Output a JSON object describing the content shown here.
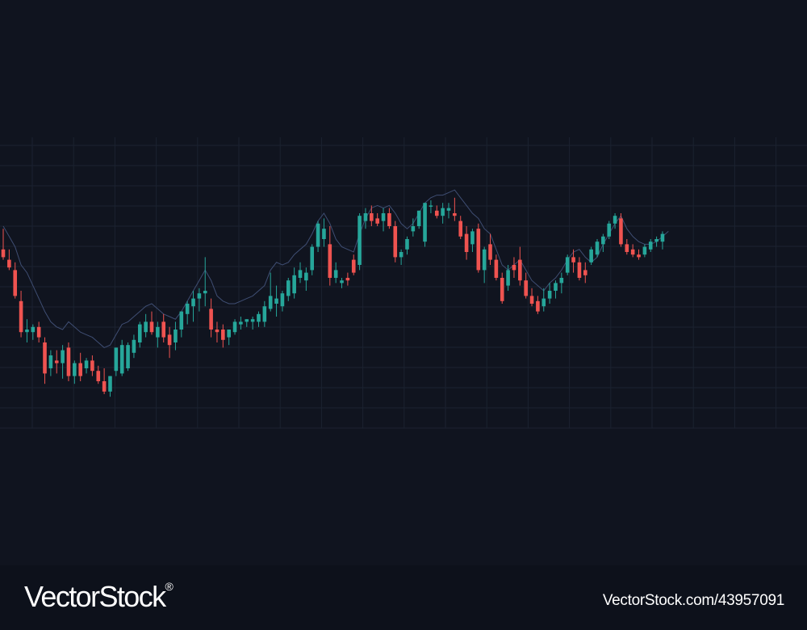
{
  "chart_data": {
    "type": "candlestick",
    "title": "",
    "xlabel": "",
    "ylabel": "",
    "grid": true,
    "ylim": [
      0,
      100
    ],
    "colors": {
      "up": "#26a69a",
      "down": "#ef5350",
      "background": "#10141f",
      "grid": "#1b2230",
      "overlay": "#3f4e73"
    },
    "candles": [
      {
        "o": 66,
        "h": 74,
        "l": 62,
        "c": 63
      },
      {
        "o": 62,
        "h": 66,
        "l": 58,
        "c": 59
      },
      {
        "o": 58,
        "h": 61,
        "l": 47,
        "c": 48
      },
      {
        "o": 46,
        "h": 50,
        "l": 32,
        "c": 34
      },
      {
        "o": 34,
        "h": 39,
        "l": 30,
        "c": 35
      },
      {
        "o": 34,
        "h": 37,
        "l": 31,
        "c": 36
      },
      {
        "o": 36,
        "h": 38,
        "l": 30,
        "c": 32
      },
      {
        "o": 30,
        "h": 32,
        "l": 14,
        "c": 18
      },
      {
        "o": 20,
        "h": 27,
        "l": 17,
        "c": 25
      },
      {
        "o": 23,
        "h": 27,
        "l": 18,
        "c": 22
      },
      {
        "o": 22,
        "h": 29,
        "l": 16,
        "c": 27
      },
      {
        "o": 28,
        "h": 30,
        "l": 15,
        "c": 17
      },
      {
        "o": 17,
        "h": 23,
        "l": 14,
        "c": 22
      },
      {
        "o": 22,
        "h": 26,
        "l": 15,
        "c": 17
      },
      {
        "o": 20,
        "h": 24,
        "l": 18,
        "c": 23
      },
      {
        "o": 23,
        "h": 25,
        "l": 17,
        "c": 19
      },
      {
        "o": 19,
        "h": 21,
        "l": 14,
        "c": 15
      },
      {
        "o": 15,
        "h": 20,
        "l": 10,
        "c": 11
      },
      {
        "o": 11,
        "h": 17,
        "l": 9,
        "c": 17
      },
      {
        "o": 19,
        "h": 28,
        "l": 17,
        "c": 28
      },
      {
        "o": 18,
        "h": 31,
        "l": 17,
        "c": 29
      },
      {
        "o": 20,
        "h": 30,
        "l": 19,
        "c": 29
      },
      {
        "o": 26,
        "h": 33,
        "l": 24,
        "c": 31
      },
      {
        "o": 30,
        "h": 38,
        "l": 28,
        "c": 37
      },
      {
        "o": 34,
        "h": 41,
        "l": 32,
        "c": 38
      },
      {
        "o": 38,
        "h": 42,
        "l": 33,
        "c": 34
      },
      {
        "o": 32,
        "h": 38,
        "l": 28,
        "c": 36
      },
      {
        "o": 38,
        "h": 41,
        "l": 30,
        "c": 32
      },
      {
        "o": 33,
        "h": 36,
        "l": 24,
        "c": 29
      },
      {
        "o": 30,
        "h": 38,
        "l": 27,
        "c": 35
      },
      {
        "o": 35,
        "h": 42,
        "l": 32,
        "c": 42
      },
      {
        "o": 41,
        "h": 46,
        "l": 37,
        "c": 45
      },
      {
        "o": 44,
        "h": 50,
        "l": 38,
        "c": 47
      },
      {
        "o": 47,
        "h": 51,
        "l": 42,
        "c": 49
      },
      {
        "o": 49,
        "h": 63,
        "l": 44,
        "c": 50
      },
      {
        "o": 43,
        "h": 47,
        "l": 32,
        "c": 35
      },
      {
        "o": 35,
        "h": 38,
        "l": 30,
        "c": 34
      },
      {
        "o": 35,
        "h": 37,
        "l": 28,
        "c": 31
      },
      {
        "o": 32,
        "h": 34,
        "l": 29,
        "c": 35
      },
      {
        "o": 34,
        "h": 39,
        "l": 33,
        "c": 38
      },
      {
        "o": 37,
        "h": 40,
        "l": 35,
        "c": 38
      },
      {
        "o": 38,
        "h": 39,
        "l": 36,
        "c": 39
      },
      {
        "o": 38,
        "h": 40,
        "l": 35,
        "c": 39
      },
      {
        "o": 38,
        "h": 42,
        "l": 36,
        "c": 41
      },
      {
        "o": 38,
        "h": 46,
        "l": 36,
        "c": 44
      },
      {
        "o": 43,
        "h": 57,
        "l": 42,
        "c": 48
      },
      {
        "o": 45,
        "h": 52,
        "l": 40,
        "c": 47
      },
      {
        "o": 44,
        "h": 50,
        "l": 42,
        "c": 49
      },
      {
        "o": 48,
        "h": 55,
        "l": 46,
        "c": 54
      },
      {
        "o": 49,
        "h": 59,
        "l": 47,
        "c": 56
      },
      {
        "o": 55,
        "h": 61,
        "l": 53,
        "c": 58
      },
      {
        "o": 54,
        "h": 59,
        "l": 50,
        "c": 57
      },
      {
        "o": 58,
        "h": 68,
        "l": 56,
        "c": 67
      },
      {
        "o": 67,
        "h": 77,
        "l": 65,
        "c": 76
      },
      {
        "o": 70,
        "h": 78,
        "l": 67,
        "c": 74
      },
      {
        "o": 68,
        "h": 75,
        "l": 52,
        "c": 55
      },
      {
        "o": 55,
        "h": 61,
        "l": 53,
        "c": 58
      },
      {
        "o": 53,
        "h": 55,
        "l": 51,
        "c": 54
      },
      {
        "o": 55,
        "h": 57,
        "l": 52,
        "c": 54
      },
      {
        "o": 62,
        "h": 64,
        "l": 56,
        "c": 57
      },
      {
        "o": 60,
        "h": 80,
        "l": 58,
        "c": 79
      },
      {
        "o": 77,
        "h": 82,
        "l": 74,
        "c": 80
      },
      {
        "o": 80,
        "h": 83,
        "l": 75,
        "c": 77
      },
      {
        "o": 78,
        "h": 80,
        "l": 75,
        "c": 76
      },
      {
        "o": 77,
        "h": 82,
        "l": 73,
        "c": 80
      },
      {
        "o": 80,
        "h": 82,
        "l": 74,
        "c": 75
      },
      {
        "o": 75,
        "h": 77,
        "l": 61,
        "c": 63
      },
      {
        "o": 63,
        "h": 66,
        "l": 60,
        "c": 65
      },
      {
        "o": 66,
        "h": 71,
        "l": 64,
        "c": 70
      },
      {
        "o": 73,
        "h": 78,
        "l": 71,
        "c": 75
      },
      {
        "o": 75,
        "h": 81,
        "l": 74,
        "c": 81
      },
      {
        "o": 69,
        "h": 84,
        "l": 67,
        "c": 84
      },
      {
        "o": 83,
        "h": 85,
        "l": 80,
        "c": 83
      },
      {
        "o": 81,
        "h": 83,
        "l": 78,
        "c": 79
      },
      {
        "o": 79,
        "h": 84,
        "l": 76,
        "c": 82
      },
      {
        "o": 81,
        "h": 84,
        "l": 78,
        "c": 82
      },
      {
        "o": 80,
        "h": 86,
        "l": 77,
        "c": 79
      },
      {
        "o": 77,
        "h": 79,
        "l": 70,
        "c": 71
      },
      {
        "o": 72,
        "h": 75,
        "l": 62,
        "c": 65
      },
      {
        "o": 68,
        "h": 74,
        "l": 65,
        "c": 73
      },
      {
        "o": 74,
        "h": 76,
        "l": 57,
        "c": 58
      },
      {
        "o": 58,
        "h": 67,
        "l": 53,
        "c": 66
      },
      {
        "o": 68,
        "h": 72,
        "l": 60,
        "c": 62
      },
      {
        "o": 62,
        "h": 64,
        "l": 54,
        "c": 55
      },
      {
        "o": 55,
        "h": 57,
        "l": 45,
        "c": 46
      },
      {
        "o": 52,
        "h": 60,
        "l": 50,
        "c": 58
      },
      {
        "o": 60,
        "h": 63,
        "l": 55,
        "c": 58
      },
      {
        "o": 62,
        "h": 67,
        "l": 52,
        "c": 54
      },
      {
        "o": 54,
        "h": 57,
        "l": 47,
        "c": 48
      },
      {
        "o": 48,
        "h": 51,
        "l": 44,
        "c": 45
      },
      {
        "o": 46,
        "h": 48,
        "l": 41,
        "c": 42
      },
      {
        "o": 44,
        "h": 51,
        "l": 42,
        "c": 47
      },
      {
        "o": 47,
        "h": 53,
        "l": 45,
        "c": 50
      },
      {
        "o": 50,
        "h": 54,
        "l": 47,
        "c": 53
      },
      {
        "o": 53,
        "h": 57,
        "l": 49,
        "c": 55
      },
      {
        "o": 57,
        "h": 64,
        "l": 56,
        "c": 63
      },
      {
        "o": 63,
        "h": 66,
        "l": 57,
        "c": 61
      },
      {
        "o": 61,
        "h": 63,
        "l": 54,
        "c": 55
      },
      {
        "o": 58,
        "h": 61,
        "l": 53,
        "c": 56
      },
      {
        "o": 61,
        "h": 67,
        "l": 60,
        "c": 66
      },
      {
        "o": 64,
        "h": 70,
        "l": 63,
        "c": 69
      },
      {
        "o": 68,
        "h": 72,
        "l": 65,
        "c": 71
      },
      {
        "o": 71,
        "h": 77,
        "l": 70,
        "c": 76
      },
      {
        "o": 76,
        "h": 80,
        "l": 74,
        "c": 79
      },
      {
        "o": 78,
        "h": 80,
        "l": 67,
        "c": 68
      },
      {
        "o": 68,
        "h": 70,
        "l": 64,
        "c": 65
      },
      {
        "o": 66,
        "h": 68,
        "l": 63,
        "c": 64
      },
      {
        "o": 64,
        "h": 66,
        "l": 62,
        "c": 63
      },
      {
        "o": 64,
        "h": 68,
        "l": 63,
        "c": 67
      },
      {
        "o": 66,
        "h": 70,
        "l": 65,
        "c": 69
      },
      {
        "o": 69,
        "h": 71,
        "l": 67,
        "c": 70
      },
      {
        "o": 69,
        "h": 73,
        "l": 66,
        "c": 72
      }
    ],
    "overlay": [
      75,
      71,
      67,
      60,
      57,
      52,
      47,
      42,
      38,
      36,
      35,
      38,
      36,
      34,
      33,
      32,
      30,
      28,
      29,
      33,
      37,
      38,
      40,
      42,
      44,
      45,
      43,
      41,
      40,
      39,
      42,
      46,
      50,
      54,
      58,
      54,
      48,
      46,
      45,
      45,
      46,
      47,
      48,
      50,
      52,
      58,
      61,
      60,
      61,
      64,
      66,
      68,
      72,
      77,
      80,
      76,
      70,
      67,
      66,
      65,
      72,
      78,
      82,
      83,
      82,
      83,
      80,
      76,
      74,
      76,
      80,
      84,
      86,
      87,
      87,
      88,
      89,
      86,
      83,
      80,
      78,
      74,
      72,
      66,
      60,
      58,
      60,
      62,
      58,
      54,
      52,
      50,
      53,
      55,
      58,
      62,
      65,
      66,
      63,
      61,
      63,
      68,
      72,
      76,
      79,
      74,
      71,
      69,
      68,
      68,
      69,
      71,
      73
    ]
  },
  "watermark": {
    "brand": "VectorStock",
    "registered": "®",
    "image_id": "VectorStock.com/43957091"
  }
}
